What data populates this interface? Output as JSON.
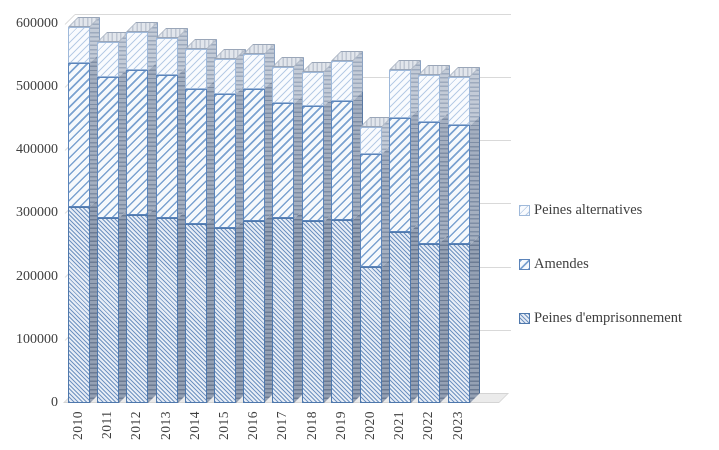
{
  "chart_data": {
    "type": "bar",
    "subtype": "stacked-3d-column",
    "title": "",
    "xlabel": "",
    "ylabel": "",
    "grid": true,
    "legend_position": "right",
    "ylim": [
      0,
      600000
    ],
    "ytick_step": 100000,
    "yticks": [
      "0",
      "100000",
      "200000",
      "300000",
      "400000",
      "500000",
      "600000"
    ],
    "categories": [
      "2010",
      "2011",
      "2012",
      "2013",
      "2014",
      "2015",
      "2016",
      "2017",
      "2018",
      "2019",
      "2020",
      "2021",
      "2022",
      "2023"
    ],
    "series": [
      {
        "name": "Peines d'emprisonnement",
        "values": [
          310000,
          292000,
          297000,
          293000,
          283000,
          277000,
          288000,
          292000,
          287000,
          289000,
          215000,
          271000,
          252000,
          251000
        ]
      },
      {
        "name": "Amendes",
        "values": [
          228000,
          224000,
          229000,
          226000,
          214000,
          211000,
          209000,
          182000,
          183000,
          188000,
          178000,
          180000,
          193000,
          188000
        ]
      },
      {
        "name": "Peines alternatives",
        "values": [
          57000,
          55000,
          61000,
          58000,
          62000,
          56000,
          54000,
          58000,
          54000,
          64000,
          43000,
          75000,
          73000,
          77000
        ]
      }
    ],
    "legend": [
      "Peines alternatives",
      "Amendes",
      "Peines d'emprisonnement"
    ]
  },
  "colors": {
    "emprisonnement_hatch": "#7093c1",
    "amendes_hatch": "#7ba2d0",
    "alternatives_hatch": "#b7cbe5",
    "segment_border": "#4f78ac",
    "gridline": "#d9d9d9",
    "axis_text": "#404040",
    "side_face": "#95a1b4",
    "top_face": "#e2e6ec"
  }
}
